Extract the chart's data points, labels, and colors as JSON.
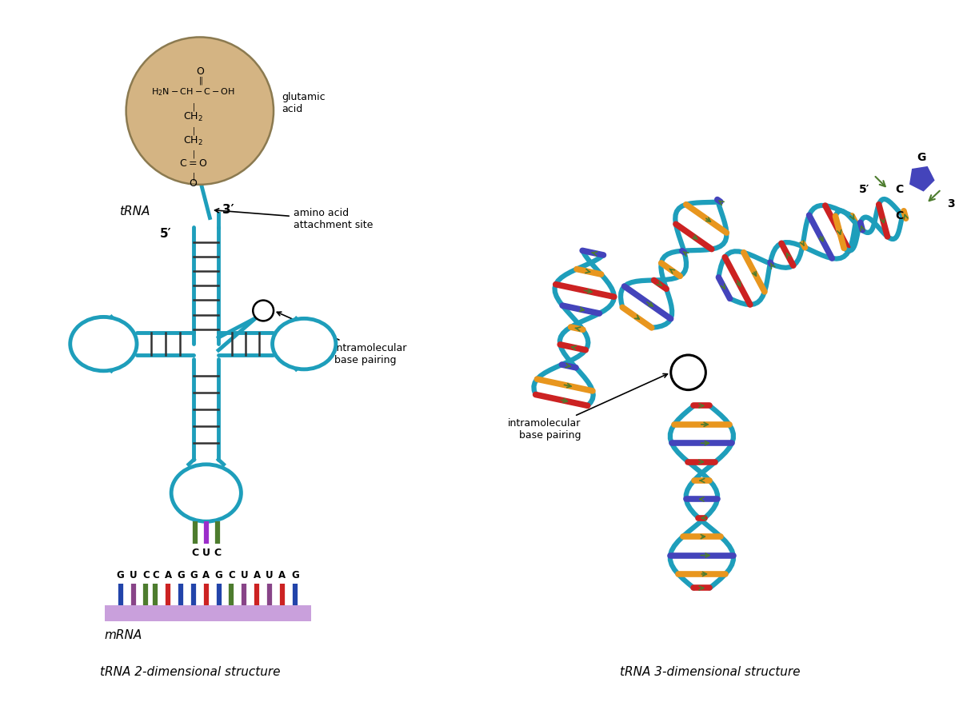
{
  "background_color": "#ffffff",
  "tRNA_color": "#1e9ebb",
  "amino_acid_circle_color": "#d4b483",
  "amino_acid_circle_edge": "#8b7a50",
  "mRNA_color": "#c9a0dc",
  "title_2d": "tRNA 2-dimensional structure",
  "title_3d": "tRNA 3-dimensional structure",
  "label_trna": "tRNA",
  "label_mrna": "mRNA",
  "label_intramolecular": "intramolecular\nbase pairing",
  "label_glutamic": "glutamic\nacid",
  "label_amino_site": "amino acid\nattachment site",
  "anticodon_letters": [
    "C",
    "U",
    "C"
  ],
  "anticodon_colors": [
    "#4d7c2e",
    "#9b2dca",
    "#4d7c2e"
  ],
  "mrna_letters": [
    "G",
    "U",
    "C",
    "C",
    "A",
    "G",
    "G",
    "A",
    "G",
    "C",
    "U",
    "A",
    "U",
    "A",
    "G"
  ],
  "mrna_colors": [
    "#2244aa",
    "#884488",
    "#4d7c2e",
    "#4d7c2e",
    "#cc2222",
    "#2244aa",
    "#2244aa",
    "#cc2222",
    "#2244aa",
    "#4d7c2e",
    "#884488",
    "#cc2222",
    "#884488",
    "#cc2222",
    "#2244aa"
  ],
  "red": "#cc2222",
  "orange": "#e8961e",
  "blue_base": "#4444bb",
  "green_base": "#4d7c2e",
  "purple_base": "#884488"
}
